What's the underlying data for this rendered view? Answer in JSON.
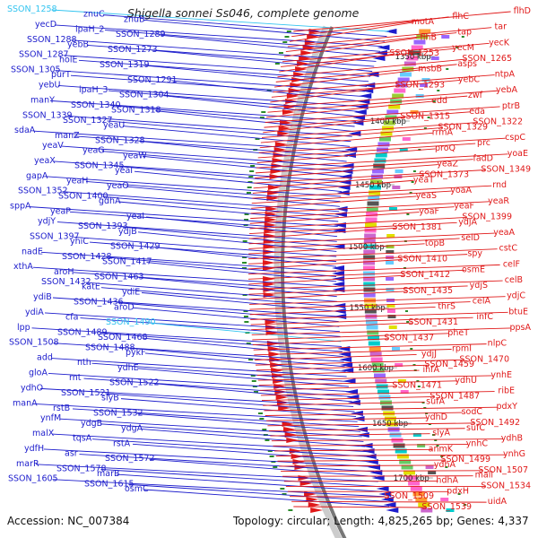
{
  "title": "Shigella sonnei Ss046, complete genome",
  "footer": {
    "accession": "Accession: NC_007384",
    "topology": "Topology: circular; Length: 4,825,265 bp; Genes: 4,337"
  },
  "colors": {
    "forward": "#1c1ccc",
    "reverse": "#e01818",
    "highlight": "#33c4f0",
    "backbone": "#777777",
    "tick": "#2a8a2a"
  },
  "scale_labels": [
    "1350 kbp",
    "1400 kbp",
    "1450 kbp",
    "1500 kbp",
    "1550 kbp",
    "1600 kbp",
    "1650 kbp",
    "1700 kbp"
  ],
  "forward_genes": [
    {
      "name": "SSON_1258",
      "highlight": true
    },
    {
      "name": "znuC"
    },
    {
      "name": "znuB"
    },
    {
      "name": "yecD"
    },
    {
      "name": "ipaH_2"
    },
    {
      "name": "SSON_1289"
    },
    {
      "name": "SSON_1288"
    },
    {
      "name": "yebB"
    },
    {
      "name": "SSON_1273"
    },
    {
      "name": "SSON_1287"
    },
    {
      "name": "holE"
    },
    {
      "name": "SSON_1319"
    },
    {
      "name": "SSON_1305"
    },
    {
      "name": "purT"
    },
    {
      "name": "SSON_1291"
    },
    {
      "name": "yebU"
    },
    {
      "name": "ipaH_3"
    },
    {
      "name": "SSON_1304"
    },
    {
      "name": "manY"
    },
    {
      "name": "SSON_1340"
    },
    {
      "name": "SSON_1318"
    },
    {
      "name": "SSON_1339"
    },
    {
      "name": "SSON_1327"
    },
    {
      "name": "yeaU"
    },
    {
      "name": "sdaA"
    },
    {
      "name": "manZ"
    },
    {
      "name": "SSON_1328"
    },
    {
      "name": "yeaV"
    },
    {
      "name": "yeaG"
    },
    {
      "name": "yeaW"
    },
    {
      "name": "yeaX"
    },
    {
      "name": "SSON_1345"
    },
    {
      "name": "yeaI"
    },
    {
      "name": "gapA"
    },
    {
      "name": "yeaH"
    },
    {
      "name": "yeaO"
    },
    {
      "name": "SSON_1352"
    },
    {
      "name": "SSON_1400"
    },
    {
      "name": "gdhA"
    },
    {
      "name": "sppA"
    },
    {
      "name": "yeaP"
    },
    {
      "name": "yeaI"
    },
    {
      "name": "ydjY"
    },
    {
      "name": "SSON_1393"
    },
    {
      "name": "ydjB"
    },
    {
      "name": "SSON_1397"
    },
    {
      "name": "yniC"
    },
    {
      "name": "SSON_1429"
    },
    {
      "name": "nadE"
    },
    {
      "name": "SSON_1428"
    },
    {
      "name": "SSON_1417"
    },
    {
      "name": "xthA"
    },
    {
      "name": "aroH"
    },
    {
      "name": "SSON_1463"
    },
    {
      "name": "SSON_1432"
    },
    {
      "name": "katE"
    },
    {
      "name": "ydiE"
    },
    {
      "name": "ydiB"
    },
    {
      "name": "SSON_1436"
    },
    {
      "name": "aroD"
    },
    {
      "name": "ydiA"
    },
    {
      "name": "cfa"
    },
    {
      "name": "SSON_1490",
      "highlight": true
    },
    {
      "name": "lpp"
    },
    {
      "name": "SSON_1489"
    },
    {
      "name": "SSON_1468"
    },
    {
      "name": "SSON_1508"
    },
    {
      "name": "SSON_1488"
    },
    {
      "name": "pykF"
    },
    {
      "name": "add"
    },
    {
      "name": "nth"
    },
    {
      "name": "ydhE"
    },
    {
      "name": "gloA"
    },
    {
      "name": "rnt"
    },
    {
      "name": "SSON_1522"
    },
    {
      "name": "ydhO"
    },
    {
      "name": "SSON_1521"
    },
    {
      "name": "slyB"
    },
    {
      "name": "manA"
    },
    {
      "name": "rstB"
    },
    {
      "name": "SSON_1532"
    },
    {
      "name": "ynfM"
    },
    {
      "name": "ydgB"
    },
    {
      "name": "ydgA"
    },
    {
      "name": "malX"
    },
    {
      "name": "tqsA"
    },
    {
      "name": "rstA"
    },
    {
      "name": "ydfH"
    },
    {
      "name": "asr"
    },
    {
      "name": "SSON_1572"
    },
    {
      "name": "marR"
    },
    {
      "name": "SSON_1578"
    },
    {
      "name": "marB"
    },
    {
      "name": "SSON_1605"
    },
    {
      "name": "SSON_1615"
    },
    {
      "name": "osmC"
    }
  ],
  "reverse_genes": [
    {
      "name": "flhD"
    },
    {
      "name": "flhC"
    },
    {
      "name": "motA"
    },
    {
      "name": "tar"
    },
    {
      "name": "tap"
    },
    {
      "name": "flhB"
    },
    {
      "name": "yecK"
    },
    {
      "name": "yecM"
    },
    {
      "name": "SSON_1253"
    },
    {
      "name": "SSON_1265"
    },
    {
      "name": "asps"
    },
    {
      "name": "msbB"
    },
    {
      "name": "ntpA"
    },
    {
      "name": "yebC"
    },
    {
      "name": "SSON_1293"
    },
    {
      "name": "yebA"
    },
    {
      "name": "zwf"
    },
    {
      "name": "edd"
    },
    {
      "name": "ptrB"
    },
    {
      "name": "eda"
    },
    {
      "name": "SSON_1315"
    },
    {
      "name": "SSON_1322"
    },
    {
      "name": "SSON_1329"
    },
    {
      "name": "rrmA"
    },
    {
      "name": "cspC"
    },
    {
      "name": "prc"
    },
    {
      "name": "proQ"
    },
    {
      "name": "yoaE"
    },
    {
      "name": "fadD"
    },
    {
      "name": "yeaZ"
    },
    {
      "name": "SSON_1349"
    },
    {
      "name": "SSON_1373"
    },
    {
      "name": "yeaT"
    },
    {
      "name": "rnd"
    },
    {
      "name": "yoaA"
    },
    {
      "name": "yeaS"
    },
    {
      "name": "yeaR"
    },
    {
      "name": "yeaF"
    },
    {
      "name": "yoaF"
    },
    {
      "name": "SSON_1399"
    },
    {
      "name": "ydjA"
    },
    {
      "name": "SSON_1381"
    },
    {
      "name": "yeaA"
    },
    {
      "name": "selD"
    },
    {
      "name": "topB"
    },
    {
      "name": "cstC"
    },
    {
      "name": "spy"
    },
    {
      "name": "SSON_1410"
    },
    {
      "name": "celF"
    },
    {
      "name": "osmE"
    },
    {
      "name": "SSON_1412"
    },
    {
      "name": "celB"
    },
    {
      "name": "ydjS"
    },
    {
      "name": "SSON_1435"
    },
    {
      "name": "ydjC"
    },
    {
      "name": "celA"
    },
    {
      "name": "thrS"
    },
    {
      "name": "btuE"
    },
    {
      "name": "infC"
    },
    {
      "name": "SSON_1431"
    },
    {
      "name": "ppsA"
    },
    {
      "name": "pheT"
    },
    {
      "name": "SSON_1437"
    },
    {
      "name": "nlpC"
    },
    {
      "name": "rpmI"
    },
    {
      "name": "ydjJ"
    },
    {
      "name": "SSON_1470"
    },
    {
      "name": "SSON_1459"
    },
    {
      "name": "ihfA"
    },
    {
      "name": "ynhE"
    },
    {
      "name": "ydhU"
    },
    {
      "name": "SSON_1471"
    },
    {
      "name": "ribE"
    },
    {
      "name": "SSON_1487"
    },
    {
      "name": "sufA"
    },
    {
      "name": "pdxY"
    },
    {
      "name": "sodC"
    },
    {
      "name": "ydhD"
    },
    {
      "name": "SSON_1492"
    },
    {
      "name": "sufC"
    },
    {
      "name": "slyA"
    },
    {
      "name": "ydhB"
    },
    {
      "name": "ynhC"
    },
    {
      "name": "anmK"
    },
    {
      "name": "ynhG"
    },
    {
      "name": "SSON_1499"
    },
    {
      "name": "ydhA"
    },
    {
      "name": "SSON_1507"
    },
    {
      "name": "mall"
    },
    {
      "name": "hdhA"
    },
    {
      "name": "SSON_1534"
    },
    {
      "name": "pdxH"
    },
    {
      "name": "SSON_1509"
    },
    {
      "name": "uidA"
    },
    {
      "name": "SSON_1539"
    }
  ]
}
